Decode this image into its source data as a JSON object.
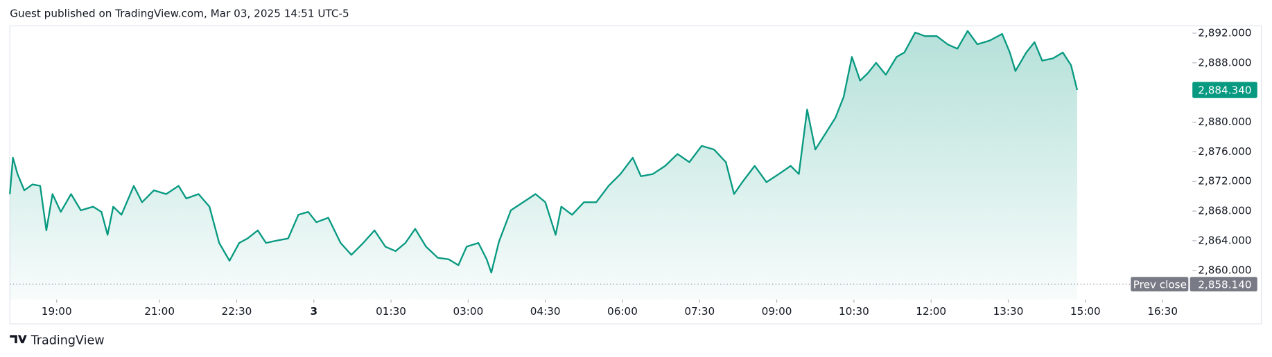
{
  "header": "Guest published on TradingView.com, Mar 03, 2025 14:51 UTC-5",
  "brand": "TradingView",
  "chart_data": {
    "type": "line",
    "color": "#089981",
    "x": [
      18.09,
      18.15,
      18.24,
      18.37,
      18.53,
      18.68,
      18.8,
      18.92,
      19.08,
      19.28,
      19.47,
      19.71,
      19.87,
      19.99,
      20.1,
      20.26,
      20.5,
      20.66,
      20.89,
      21.13,
      21.37,
      21.52,
      21.76,
      21.97,
      22.16,
      22.36,
      22.55,
      22.71,
      22.91,
      23.07,
      23.26,
      23.5,
      23.7,
      23.89,
      24.05,
      24.28,
      24.52,
      24.73,
      24.96,
      25.18,
      25.39,
      25.59,
      25.78,
      25.97,
      26.18,
      26.41,
      26.62,
      26.81,
      26.97,
      27.2,
      27.36,
      27.45,
      27.6,
      27.83,
      28.07,
      28.31,
      28.5,
      28.7,
      28.81,
      29.02,
      29.25,
      29.49,
      29.73,
      29.96,
      30.2,
      30.36,
      30.59,
      30.83,
      31.07,
      31.3,
      31.54,
      31.78,
      32.01,
      32.17,
      32.33,
      32.57,
      32.8,
      33.04,
      33.27,
      33.43,
      33.59,
      33.75,
      33.95,
      34.14,
      34.3,
      34.46,
      34.62,
      34.77,
      34.93,
      35.12,
      35.33,
      35.48,
      35.69,
      35.88,
      36.11,
      36.32,
      36.51,
      36.71,
      36.9,
      37.14,
      37.38,
      37.53,
      37.64,
      37.85,
      38.01,
      38.16,
      38.37,
      38.56,
      38.72,
      38.84
    ],
    "values": [
      2870.3,
      2875.2,
      2873.0,
      2870.8,
      2871.6,
      2871.4,
      2865.4,
      2870.3,
      2867.9,
      2870.3,
      2868.1,
      2868.6,
      2867.9,
      2864.8,
      2868.6,
      2867.5,
      2871.4,
      2869.2,
      2870.8,
      2870.3,
      2871.4,
      2869.7,
      2870.3,
      2868.6,
      2863.7,
      2861.3,
      2863.7,
      2864.3,
      2865.4,
      2863.7,
      2864.0,
      2864.3,
      2867.5,
      2867.9,
      2866.5,
      2867.1,
      2863.7,
      2862.1,
      2863.7,
      2865.4,
      2863.2,
      2862.6,
      2863.7,
      2865.6,
      2863.2,
      2861.7,
      2861.5,
      2860.7,
      2863.2,
      2863.7,
      2861.5,
      2859.7,
      2863.9,
      2868.1,
      2869.2,
      2870.3,
      2869.2,
      2864.8,
      2868.6,
      2867.5,
      2869.2,
      2869.2,
      2871.4,
      2873.0,
      2875.2,
      2872.7,
      2873.0,
      2874.1,
      2875.7,
      2874.6,
      2876.8,
      2876.3,
      2874.6,
      2870.3,
      2871.9,
      2874.1,
      2871.9,
      2873.0,
      2874.1,
      2873.0,
      2881.7,
      2876.3,
      2878.5,
      2880.6,
      2883.4,
      2888.8,
      2885.6,
      2886.6,
      2888.0,
      2886.4,
      2888.8,
      2889.4,
      2892.1,
      2891.6,
      2891.6,
      2890.5,
      2889.9,
      2892.3,
      2890.5,
      2891.0,
      2891.9,
      2889.4,
      2886.9,
      2889.4,
      2890.8,
      2888.3,
      2888.6,
      2889.4,
      2887.7,
      2884.34
    ],
    "xlim": [
      18.09,
      41.08
    ],
    "xticks": [
      {
        "value": 19,
        "label": "19:00"
      },
      {
        "value": 21,
        "label": "21:00"
      },
      {
        "value": 22.5,
        "label": "22:30"
      },
      {
        "value": 24,
        "label": "3"
      },
      {
        "value": 25.5,
        "label": "01:30"
      },
      {
        "value": 27,
        "label": "03:00"
      },
      {
        "value": 28.5,
        "label": "04:30"
      },
      {
        "value": 30,
        "label": "06:00"
      },
      {
        "value": 31.5,
        "label": "07:30"
      },
      {
        "value": 33,
        "label": "09:00"
      },
      {
        "value": 34.5,
        "label": "10:30"
      },
      {
        "value": 36,
        "label": "12:00"
      },
      {
        "value": 37.5,
        "label": "13:30"
      },
      {
        "value": 39,
        "label": "15:00"
      },
      {
        "value": 40.5,
        "label": "16:30"
      }
    ],
    "ylim": [
      2856.07,
      2892.98
    ],
    "yticks": [
      {
        "value": 2860,
        "label": "2,860.000"
      },
      {
        "value": 2864,
        "label": "2,864.000"
      },
      {
        "value": 2868,
        "label": "2,868.000"
      },
      {
        "value": 2872,
        "label": "2,872.000"
      },
      {
        "value": 2876,
        "label": "2,876.000"
      },
      {
        "value": 2880,
        "label": "2,880.000"
      },
      {
        "value": 2884,
        "label": "2,884.000"
      },
      {
        "value": 2888,
        "label": "2,888.000"
      },
      {
        "value": 2892,
        "label": "2,892.000"
      }
    ],
    "last_price": {
      "value": 2884.34,
      "label": "2,884.340"
    },
    "prev_close": {
      "name": "Prev close",
      "value": 2858.14,
      "label": "2,858.140"
    }
  }
}
